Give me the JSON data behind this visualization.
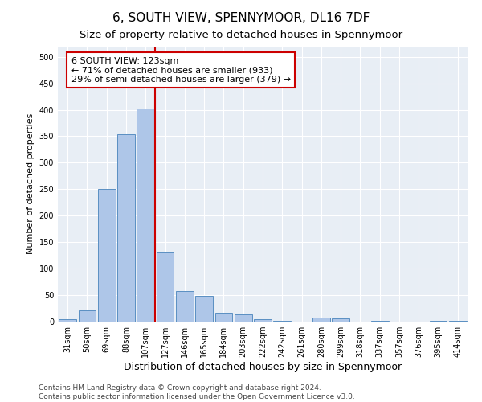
{
  "title": "6, SOUTH VIEW, SPENNYMOOR, DL16 7DF",
  "subtitle": "Size of property relative to detached houses in Spennymoor",
  "xlabel": "Distribution of detached houses by size in Spennymoor",
  "ylabel": "Number of detached properties",
  "categories": [
    "31sqm",
    "50sqm",
    "69sqm",
    "88sqm",
    "107sqm",
    "127sqm",
    "146sqm",
    "165sqm",
    "184sqm",
    "203sqm",
    "222sqm",
    "242sqm",
    "261sqm",
    "280sqm",
    "299sqm",
    "318sqm",
    "337sqm",
    "357sqm",
    "376sqm",
    "395sqm",
    "414sqm"
  ],
  "values": [
    5,
    22,
    250,
    353,
    403,
    130,
    58,
    48,
    17,
    13,
    5,
    1,
    0,
    7,
    6,
    0,
    2,
    0,
    0,
    2,
    2
  ],
  "bar_color": "#aec6e8",
  "bar_edge_color": "#5a8fc2",
  "vline_x": 4.5,
  "vline_color": "#cc0000",
  "annotation_box_text": "6 SOUTH VIEW: 123sqm\n← 71% of detached houses are smaller (933)\n29% of semi-detached houses are larger (379) →",
  "annotation_box_color": "#cc0000",
  "ylim": [
    0,
    520
  ],
  "yticks": [
    0,
    50,
    100,
    150,
    200,
    250,
    300,
    350,
    400,
    450,
    500
  ],
  "plot_bg_color": "#e8eef5",
  "footer_line1": "Contains HM Land Registry data © Crown copyright and database right 2024.",
  "footer_line2": "Contains public sector information licensed under the Open Government Licence v3.0.",
  "title_fontsize": 11,
  "subtitle_fontsize": 9.5,
  "xlabel_fontsize": 9,
  "ylabel_fontsize": 8,
  "tick_fontsize": 7,
  "footer_fontsize": 6.5,
  "annotation_fontsize": 8
}
